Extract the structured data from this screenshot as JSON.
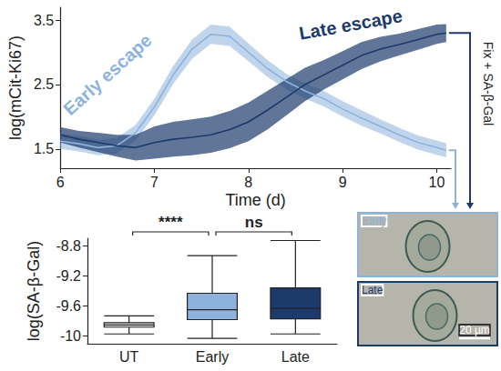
{
  "chart_data": [
    {
      "type": "line",
      "xlabel": "Time (d)",
      "ylabel": "log(mCit-Ki67)",
      "x": [
        6.0,
        6.2,
        6.4,
        6.6,
        6.8,
        7.0,
        7.2,
        7.4,
        7.6,
        7.8,
        8.0,
        8.2,
        8.4,
        8.6,
        8.8,
        9.0,
        9.2,
        9.4,
        9.6,
        9.8,
        10.0,
        10.1
      ],
      "xlim": [
        6,
        10.15
      ],
      "xticks": [
        6,
        7,
        8,
        9,
        10
      ],
      "ylim": [
        1.2,
        3.7
      ],
      "yticks": [
        1.5,
        2.5,
        3.5
      ],
      "series": [
        {
          "name": "Early escape",
          "color": "#8db3dd",
          "values": [
            1.62,
            1.58,
            1.52,
            1.55,
            1.75,
            2.15,
            2.65,
            3.05,
            3.28,
            3.25,
            3.0,
            2.75,
            2.55,
            2.4,
            2.28,
            2.12,
            1.98,
            1.85,
            1.72,
            1.6,
            1.52,
            1.48
          ],
          "lower": [
            1.5,
            1.46,
            1.4,
            1.43,
            1.63,
            2.02,
            2.51,
            2.9,
            3.13,
            3.1,
            2.86,
            2.62,
            2.43,
            2.28,
            2.16,
            2.0,
            1.86,
            1.74,
            1.61,
            1.49,
            1.41,
            1.37
          ],
          "upper": [
            1.74,
            1.7,
            1.64,
            1.67,
            1.87,
            2.28,
            2.79,
            3.2,
            3.43,
            3.4,
            3.14,
            2.88,
            2.67,
            2.52,
            2.4,
            2.24,
            2.1,
            1.96,
            1.83,
            1.71,
            1.63,
            1.59
          ]
        },
        {
          "name": "Late escape",
          "color": "#1c3a6b",
          "values": [
            1.72,
            1.65,
            1.6,
            1.55,
            1.52,
            1.6,
            1.65,
            1.68,
            1.72,
            1.8,
            1.92,
            2.1,
            2.3,
            2.5,
            2.65,
            2.8,
            2.95,
            3.05,
            3.12,
            3.2,
            3.28,
            3.3
          ],
          "lower": [
            1.6,
            1.52,
            1.45,
            1.38,
            1.32,
            1.35,
            1.38,
            1.4,
            1.44,
            1.51,
            1.62,
            1.8,
            2.02,
            2.24,
            2.42,
            2.58,
            2.74,
            2.86,
            2.95,
            3.04,
            3.13,
            3.16
          ],
          "upper": [
            1.84,
            1.78,
            1.75,
            1.72,
            1.72,
            1.85,
            1.92,
            1.96,
            2.0,
            2.09,
            2.22,
            2.4,
            2.58,
            2.76,
            2.88,
            3.02,
            3.16,
            3.24,
            3.29,
            3.36,
            3.43,
            3.44
          ]
        }
      ]
    },
    {
      "type": "boxplot",
      "ylabel": "log(SA-β-Gal)",
      "categories": [
        "UT",
        "Early",
        "Late"
      ],
      "values": [
        [
          -9.97,
          -9.88,
          -9.85,
          -9.82,
          -9.73
        ],
        [
          -10.03,
          -9.78,
          -9.65,
          -9.43,
          -8.93
        ],
        [
          -9.97,
          -9.77,
          -9.63,
          -9.36,
          -8.73
        ]
      ],
      "colors": [
        "#e6e6e6",
        "#8db3dd",
        "#1c3a6b"
      ],
      "ylim": [
        -10.1,
        -8.7
      ],
      "yticks": [
        -10,
        -9.6,
        -9.2,
        -8.8
      ],
      "annotations": [
        {
          "text": "****",
          "from": "UT",
          "to": "Early"
        },
        {
          "text": "ns",
          "from": "Early",
          "to": "Late"
        }
      ]
    }
  ],
  "images": {
    "side_label": "Fix + SA-β-Gal",
    "panels": [
      {
        "label": "Early",
        "color": "#8db3dd"
      },
      {
        "label": "Late",
        "color": "#1c3a6b"
      }
    ],
    "scale_bar": "20 µm"
  }
}
